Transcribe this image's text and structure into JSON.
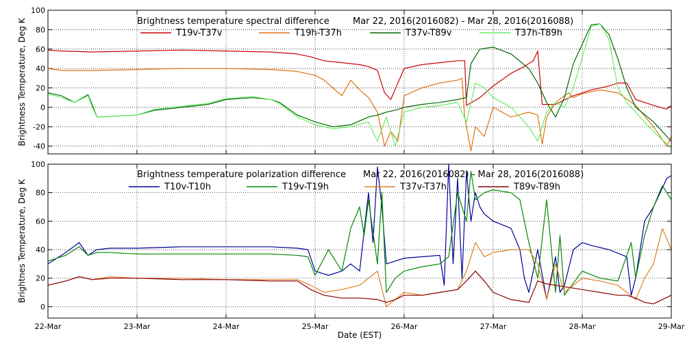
{
  "chart_data": [
    {
      "type": "line",
      "title": "Brightness temperature spectral difference",
      "date_range": "Mar 22, 2016(2016082) - Mar 28, 2016(2016088)",
      "ylabel": "Brightness Temperature, Deg K",
      "xlabel": "",
      "xlim": [
        0,
        7
      ],
      "ylim": [
        -48,
        100
      ],
      "yticks": [
        -40,
        -20,
        0,
        20,
        40,
        60,
        80,
        100
      ],
      "grid": true,
      "legend": "top",
      "series": [
        {
          "name": "T19v-T37v",
          "color": "#cc0000",
          "x": [
            0,
            0.15,
            0.5,
            1,
            1.5,
            2,
            2.5,
            2.8,
            2.95,
            3.1,
            3.3,
            3.5,
            3.6,
            3.7,
            3.78,
            3.85,
            3.93,
            4.0,
            4.2,
            4.4,
            4.6,
            4.68,
            4.7,
            4.85,
            5.0,
            5.2,
            5.35,
            5.45,
            5.5,
            5.55,
            5.7,
            5.9,
            6.1,
            6.3,
            6.4,
            6.5,
            6.6,
            6.7,
            6.8,
            6.95,
            7.0
          ],
          "y": [
            59,
            58,
            57,
            58,
            59,
            58,
            57,
            55,
            52,
            48,
            46,
            44,
            42,
            38,
            15,
            8,
            25,
            40,
            44,
            46,
            48,
            48,
            2,
            10,
            22,
            35,
            42,
            48,
            58,
            3,
            3,
            12,
            18,
            22,
            25,
            25,
            8,
            5,
            2,
            -2,
            2
          ]
        },
        {
          "name": "T19h-T37h",
          "color": "#e07010",
          "x": [
            0,
            0.15,
            0.5,
            1,
            1.5,
            2,
            2.5,
            2.8,
            3.0,
            3.1,
            3.2,
            3.3,
            3.4,
            3.5,
            3.6,
            3.7,
            3.78,
            3.85,
            3.93,
            4.0,
            4.2,
            4.4,
            4.6,
            4.65,
            4.68,
            4.75,
            4.8,
            4.9,
            5.0,
            5.2,
            5.4,
            5.5,
            5.55,
            5.6,
            5.7,
            5.8,
            5.85,
            5.9,
            6.0,
            6.2,
            6.4,
            6.6,
            6.8,
            6.95,
            7.0
          ],
          "y": [
            40,
            38,
            38,
            39,
            40,
            40,
            39,
            37,
            33,
            28,
            20,
            12,
            28,
            18,
            10,
            -5,
            -40,
            -25,
            -35,
            12,
            20,
            25,
            28,
            30,
            -10,
            -45,
            -20,
            -30,
            0,
            -10,
            -5,
            -8,
            -38,
            -10,
            5,
            12,
            15,
            10,
            14,
            18,
            15,
            2,
            -20,
            -40,
            -30
          ]
        },
        {
          "name": "T37v-T89v",
          "color": "#006600",
          "x": [
            0,
            0.15,
            0.3,
            0.45,
            0.5,
            0.55,
            1.0,
            1.2,
            1.5,
            1.8,
            2.0,
            2.3,
            2.5,
            2.6,
            2.8,
            3.0,
            3.2,
            3.4,
            3.6,
            3.7,
            3.8,
            3.9,
            4.0,
            4.2,
            4.4,
            4.6,
            4.7,
            4.75,
            4.85,
            5.0,
            5.2,
            5.4,
            5.5,
            5.6,
            5.7,
            5.8,
            5.9,
            6.1,
            6.2,
            6.3,
            6.4,
            6.5,
            6.6,
            6.8,
            7.0
          ],
          "y": [
            15,
            12,
            5,
            13,
            2,
            -10,
            -8,
            -3,
            0,
            3,
            8,
            10,
            8,
            5,
            -8,
            -15,
            -20,
            -18,
            -10,
            -8,
            -5,
            -3,
            0,
            3,
            5,
            8,
            10,
            45,
            60,
            62,
            55,
            40,
            25,
            5,
            -10,
            10,
            45,
            85,
            86,
            75,
            50,
            20,
            0,
            -15,
            -35
          ]
        },
        {
          "name": "T37h-T89h",
          "color": "#66ee66",
          "x": [
            0,
            0.15,
            0.3,
            0.45,
            0.5,
            0.55,
            1.0,
            1.2,
            1.5,
            1.8,
            2.0,
            2.3,
            2.5,
            2.6,
            2.8,
            3.0,
            3.2,
            3.4,
            3.6,
            3.7,
            3.8,
            3.9,
            4.0,
            4.2,
            4.4,
            4.6,
            4.7,
            4.8,
            4.9,
            5.0,
            5.2,
            5.4,
            5.5,
            5.6,
            5.7,
            5.8,
            5.9,
            6.1,
            6.2,
            6.3,
            6.4,
            6.5,
            6.6,
            6.8,
            7.0
          ],
          "y": [
            14,
            10,
            5,
            12,
            0,
            -10,
            -8,
            -2,
            1,
            4,
            9,
            11,
            8,
            4,
            -10,
            -18,
            -22,
            -20,
            -15,
            -35,
            -10,
            -40,
            -5,
            0,
            2,
            5,
            -15,
            25,
            20,
            10,
            0,
            -20,
            -35,
            -5,
            5,
            0,
            20,
            83,
            86,
            70,
            20,
            5,
            -5,
            -25,
            -42
          ]
        }
      ]
    },
    {
      "type": "line",
      "title": "Brightness temperature polarization difference",
      "date_range": "Mar 22, 2016(2016082) - Mar 28, 2016(2016088)",
      "ylabel": "Brightnes Temperature, Deg K",
      "xlabel": "Date (EST)",
      "xlim": [
        0,
        7
      ],
      "ylim": [
        -8,
        100
      ],
      "yticks": [
        0,
        20,
        40,
        60,
        80,
        100
      ],
      "xticks": [
        "22-Mar",
        "23-Mar",
        "24-Mar",
        "25-Mar",
        "26-Mar",
        "27-Mar",
        "28-Mar",
        "29-Mar"
      ],
      "grid": true,
      "legend": "top",
      "series": [
        {
          "name": "T10v-T10h",
          "color": "#000099",
          "x": [
            0,
            0.2,
            0.35,
            0.45,
            0.55,
            0.7,
            1.0,
            1.5,
            2.0,
            2.5,
            2.8,
            2.92,
            3.0,
            3.15,
            3.3,
            3.4,
            3.5,
            3.6,
            3.65,
            3.7,
            3.75,
            3.8,
            3.9,
            4.0,
            4.2,
            4.4,
            4.45,
            4.5,
            4.55,
            4.6,
            4.65,
            4.7,
            4.75,
            4.8,
            4.85,
            4.9,
            5.0,
            5.2,
            5.3,
            5.35,
            5.4,
            5.5,
            5.6,
            5.7,
            5.75,
            5.8,
            5.9,
            6.0,
            6.1,
            6.3,
            6.5,
            6.55,
            6.6,
            6.7,
            6.8,
            6.95,
            7.0
          ],
          "y": [
            30,
            38,
            45,
            36,
            40,
            41,
            41,
            42,
            42,
            42,
            41,
            40,
            25,
            22,
            25,
            30,
            25,
            80,
            45,
            98,
            70,
            30,
            32,
            34,
            35,
            36,
            15,
            100,
            30,
            90,
            20,
            95,
            60,
            80,
            70,
            65,
            60,
            55,
            40,
            20,
            10,
            40,
            5,
            35,
            10,
            15,
            40,
            45,
            43,
            40,
            35,
            8,
            20,
            60,
            70,
            90,
            92
          ]
        },
        {
          "name": "T19v-T19h",
          "color": "#008800",
          "x": [
            0,
            0.2,
            0.35,
            0.45,
            0.55,
            0.7,
            1.0,
            1.5,
            2.0,
            2.5,
            2.8,
            2.92,
            3.0,
            3.15,
            3.3,
            3.4,
            3.5,
            3.55,
            3.6,
            3.7,
            3.75,
            3.8,
            3.9,
            4.0,
            4.2,
            4.4,
            4.5,
            4.6,
            4.7,
            4.75,
            4.8,
            4.9,
            5.0,
            5.2,
            5.3,
            5.4,
            5.5,
            5.6,
            5.7,
            5.75,
            5.8,
            6.0,
            6.2,
            6.4,
            6.55,
            6.6,
            6.7,
            6.8,
            6.9,
            7.0
          ],
          "y": [
            32,
            36,
            42,
            36,
            38,
            38,
            37,
            37,
            37,
            37,
            36,
            35,
            22,
            40,
            25,
            55,
            70,
            50,
            75,
            30,
            80,
            10,
            20,
            25,
            28,
            30,
            35,
            80,
            60,
            95,
            75,
            80,
            82,
            80,
            75,
            45,
            20,
            75,
            10,
            50,
            8,
            25,
            20,
            18,
            45,
            20,
            50,
            70,
            85,
            75
          ]
        },
        {
          "name": "T37v-T37h",
          "color": "#e08020",
          "x": [
            0,
            0.2,
            0.35,
            0.5,
            0.7,
            1.0,
            1.5,
            2.0,
            2.5,
            2.8,
            2.95,
            3.1,
            3.3,
            3.5,
            3.7,
            3.8,
            3.9,
            4.0,
            4.2,
            4.4,
            4.6,
            4.7,
            4.8,
            4.9,
            5.0,
            5.2,
            5.4,
            5.5,
            5.6,
            5.7,
            5.8,
            6.0,
            6.2,
            6.4,
            6.5,
            6.6,
            6.7,
            6.8,
            6.9,
            7.0
          ],
          "y": [
            15,
            18,
            21,
            19,
            21,
            20,
            20,
            19,
            19,
            19,
            15,
            10,
            12,
            15,
            25,
            0,
            5,
            10,
            8,
            10,
            12,
            25,
            45,
            35,
            38,
            40,
            40,
            30,
            5,
            30,
            10,
            20,
            18,
            15,
            10,
            5,
            20,
            30,
            55,
            40
          ]
        },
        {
          "name": "T89v-T89h",
          "color": "#880000",
          "x": [
            0,
            0.2,
            0.35,
            0.5,
            0.7,
            1.0,
            1.5,
            2.0,
            2.5,
            2.8,
            2.95,
            3.1,
            3.3,
            3.5,
            3.7,
            3.8,
            3.9,
            4.0,
            4.2,
            4.4,
            4.6,
            4.7,
            4.8,
            4.9,
            5.0,
            5.2,
            5.4,
            5.5,
            5.6,
            5.8,
            6.0,
            6.2,
            6.4,
            6.5,
            6.6,
            6.7,
            6.8,
            6.9,
            7.0
          ],
          "y": [
            15,
            18,
            21,
            19,
            20,
            20,
            19,
            19,
            18,
            18,
            12,
            8,
            6,
            6,
            5,
            3,
            5,
            8,
            8,
            10,
            12,
            18,
            25,
            18,
            10,
            5,
            3,
            18,
            16,
            14,
            12,
            10,
            8,
            8,
            6,
            3,
            2,
            5,
            8
          ]
        }
      ]
    }
  ]
}
